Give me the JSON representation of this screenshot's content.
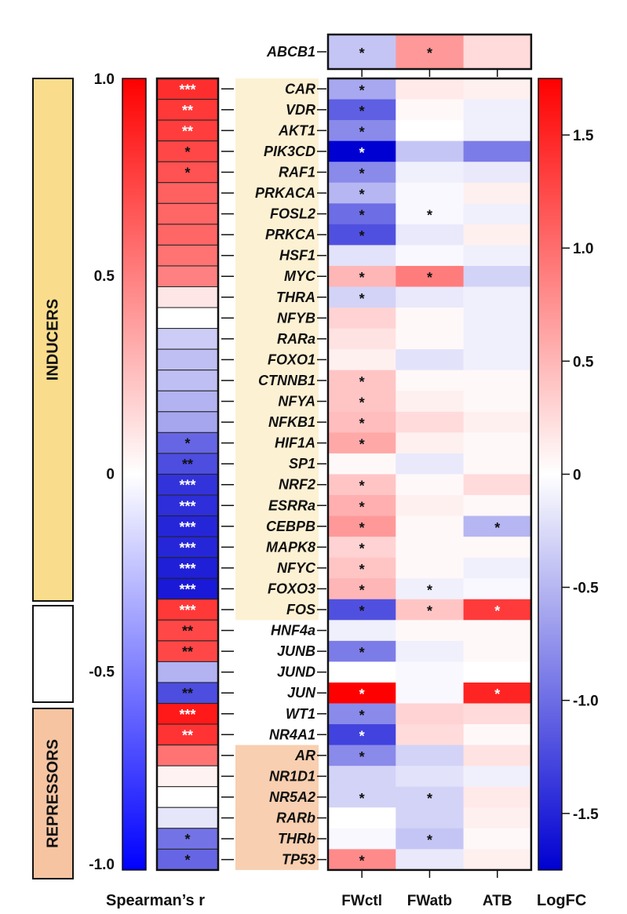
{
  "chart_data": {
    "type": "heatmap",
    "groups": [
      {
        "label": "INDUCERS",
        "color": "#f9dd8c",
        "bg": "#fdf1d3",
        "start": 0,
        "end": 25
      },
      {
        "label": "",
        "color": "#ffffff",
        "bg": "#ffffff",
        "start": 26,
        "end": 31
      },
      {
        "label": "REPRESSORS",
        "color": "#f6c4a1",
        "bg": "#f8cfb0",
        "start": 32,
        "end": 39
      }
    ],
    "genes": [
      "CAR",
      "VDR",
      "AKT1",
      "PIK3CD",
      "RAF1",
      "PRKACA",
      "FOSL2",
      "PRKCA",
      "HSF1",
      "MYC",
      "THRA",
      "NFYB",
      "RARa",
      "FOXO1",
      "CTNNB1",
      "NFYA",
      "NFKB1",
      "HIF1A",
      "SP1",
      "NRF2",
      "ESRRa",
      "CEBPB",
      "MAPK8",
      "NFYC",
      "FOXO3",
      "FOS",
      "HNF4a",
      "JUNB",
      "JUND",
      "JUN",
      "WT1",
      "NR4A1",
      "AR",
      "NR1D1",
      "NR5A2",
      "RARb",
      "THRb",
      "TP53"
    ],
    "spearman": {
      "title": "Spearman’s r",
      "range": [
        -1.0,
        1.0
      ],
      "ticks": [
        "1.0",
        "0.5",
        "0",
        "-0.5",
        "-1.0"
      ],
      "tick_values": [
        1.0,
        0.5,
        0,
        -0.5,
        -1.0
      ],
      "values": [
        0.82,
        0.78,
        0.76,
        0.72,
        0.68,
        0.62,
        0.6,
        0.6,
        0.55,
        0.5,
        0.1,
        0.0,
        -0.2,
        -0.25,
        -0.25,
        -0.3,
        -0.35,
        -0.6,
        -0.7,
        -0.8,
        -0.82,
        -0.85,
        -0.85,
        -0.88,
        -0.9,
        0.78,
        0.72,
        0.72,
        -0.3,
        -0.7,
        0.9,
        0.8,
        0.55,
        0.05,
        0.0,
        -0.1,
        -0.55,
        -0.6
      ],
      "significance": [
        "***",
        "**",
        "**",
        "*",
        "*",
        "",
        "",
        "",
        "",
        "",
        "",
        "",
        "",
        "",
        "",
        "",
        "",
        "*",
        "**",
        "***",
        "***",
        "***",
        "***",
        "***",
        "***",
        "***",
        "**",
        "**",
        "",
        "**",
        "***",
        "**",
        "",
        "",
        "",
        "",
        "*",
        "*"
      ]
    },
    "logfc": {
      "title": "LogFC",
      "range": [
        -1.75,
        1.75
      ],
      "ticks": [
        "1.5",
        "1.0",
        "0.5",
        "0",
        "-0.5",
        "-1.0",
        "-1.5"
      ],
      "tick_values": [
        1.5,
        1.0,
        0.5,
        0,
        -0.5,
        -1.0,
        -1.5
      ],
      "columns": [
        "FWctl",
        "FWatb",
        "ATB"
      ],
      "header_gene": "ABCB1",
      "header_values": [
        -0.4,
        0.7,
        0.25
      ],
      "header_sig": [
        "*",
        "*",
        ""
      ],
      "values": [
        [
          -0.6,
          0.15,
          0.1
        ],
        [
          -1.1,
          0.05,
          -0.1
        ],
        [
          -0.8,
          0.0,
          -0.1
        ],
        [
          -1.75,
          -0.4,
          -0.9
        ],
        [
          -0.8,
          -0.1,
          -0.15
        ],
        [
          -0.5,
          -0.05,
          0.1
        ],
        [
          -1.0,
          -0.05,
          -0.1
        ],
        [
          -1.2,
          -0.15,
          0.1
        ],
        [
          -0.2,
          -0.05,
          -0.1
        ],
        [
          0.5,
          0.9,
          -0.3
        ],
        [
          -0.3,
          -0.15,
          -0.1
        ],
        [
          0.3,
          0.05,
          -0.1
        ],
        [
          0.2,
          0.05,
          -0.1
        ],
        [
          0.1,
          -0.2,
          -0.1
        ],
        [
          0.4,
          0.05,
          0.05
        ],
        [
          0.4,
          0.1,
          0.05
        ],
        [
          0.45,
          0.25,
          0.1
        ],
        [
          0.6,
          0.1,
          0.05
        ],
        [
          0.05,
          -0.15,
          0.05
        ],
        [
          0.4,
          0.05,
          0.25
        ],
        [
          0.55,
          0.1,
          0.05
        ],
        [
          0.7,
          0.05,
          -0.5
        ],
        [
          0.3,
          0.05,
          0.05
        ],
        [
          0.4,
          0.05,
          -0.1
        ],
        [
          0.5,
          -0.1,
          -0.05
        ],
        [
          -1.2,
          0.4,
          1.35
        ],
        [
          -0.1,
          0.05,
          0.05
        ],
        [
          -0.9,
          -0.1,
          0.05
        ],
        [
          0.0,
          -0.05,
          0.0
        ],
        [
          1.75,
          -0.05,
          1.5
        ],
        [
          -0.8,
          0.3,
          0.25
        ],
        [
          -1.3,
          0.25,
          0.05
        ],
        [
          -0.8,
          -0.3,
          0.2
        ],
        [
          -0.3,
          -0.2,
          -0.1
        ],
        [
          -0.3,
          -0.3,
          0.15
        ],
        [
          0.0,
          -0.3,
          0.1
        ],
        [
          -0.05,
          -0.4,
          0.05
        ],
        [
          0.8,
          -0.15,
          0.1
        ]
      ],
      "significance": [
        [
          "*",
          "",
          ""
        ],
        [
          "*",
          "",
          ""
        ],
        [
          "*",
          "",
          ""
        ],
        [
          "*",
          "",
          ""
        ],
        [
          "*",
          "",
          ""
        ],
        [
          "*",
          "",
          ""
        ],
        [
          "*",
          "*",
          ""
        ],
        [
          "*",
          "",
          ""
        ],
        [
          "",
          "",
          ""
        ],
        [
          "*",
          "*",
          ""
        ],
        [
          "*",
          "",
          ""
        ],
        [
          "",
          "",
          ""
        ],
        [
          "",
          "",
          ""
        ],
        [
          "",
          "",
          ""
        ],
        [
          "*",
          "",
          ""
        ],
        [
          "*",
          "",
          ""
        ],
        [
          "*",
          "",
          ""
        ],
        [
          "*",
          "",
          ""
        ],
        [
          "",
          "",
          ""
        ],
        [
          "*",
          "",
          ""
        ],
        [
          "*",
          "",
          ""
        ],
        [
          "*",
          "",
          "*"
        ],
        [
          "*",
          "",
          ""
        ],
        [
          "*",
          "",
          ""
        ],
        [
          "*",
          "*",
          ""
        ],
        [
          "*",
          "*",
          "*"
        ],
        [
          "",
          "",
          ""
        ],
        [
          "*",
          "",
          ""
        ],
        [
          "",
          "",
          ""
        ],
        [
          "*",
          "",
          "*"
        ],
        [
          "*",
          "",
          ""
        ],
        [
          "*",
          "",
          ""
        ],
        [
          "*",
          "",
          ""
        ],
        [
          "",
          "",
          ""
        ],
        [
          "*",
          "*",
          ""
        ],
        [
          "",
          "",
          ""
        ],
        [
          "",
          "*",
          ""
        ],
        [
          "*",
          "",
          ""
        ]
      ]
    }
  }
}
